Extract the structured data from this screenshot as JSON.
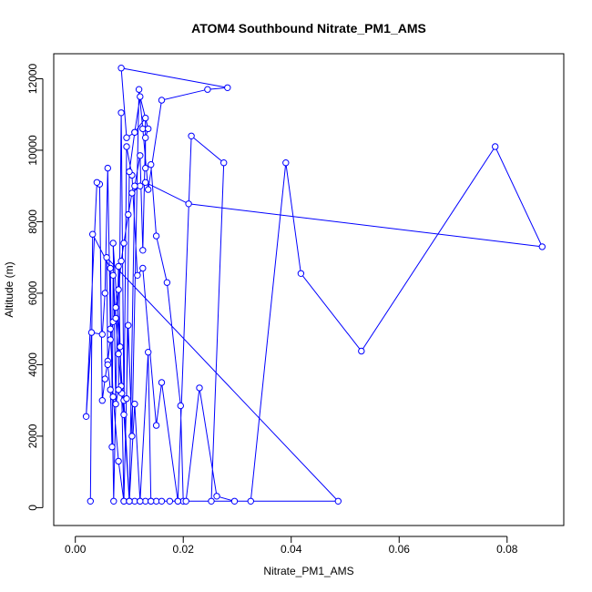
{
  "chart_data": {
    "type": "line",
    "title": "ATOM4 Southbound Nitrate_PM1_AMS",
    "xlabel": "Nitrate_PM1_AMS",
    "ylabel": "Altitude (m)",
    "xlim": [
      -0.004,
      0.0905
    ],
    "ylim": [
      -500,
      12700
    ],
    "x_ticks": [
      0.0,
      0.02,
      0.04,
      0.06,
      0.08
    ],
    "x_tick_labels": [
      "0.00",
      "0.02",
      "0.04",
      "0.06",
      "0.08"
    ],
    "y_ticks": [
      0,
      2000,
      4000,
      6000,
      8000,
      10000,
      12000
    ],
    "y_tick_labels": [
      "0",
      "2000",
      "4000",
      "6000",
      "8000",
      "10000",
      "12000"
    ],
    "grid": false,
    "marker": "open-circle",
    "color": "#0000ff",
    "series": [
      {
        "x": [
          0.0028,
          0.0032,
          0.0065,
          0.0071,
          0.008,
          0.0083,
          0.0086,
          0.009,
          0.0098,
          0.0105,
          0.0118,
          0.0125,
          0.0135,
          0.016,
          0.0245,
          0.0282,
          0.0085,
          0.0095,
          0.011,
          0.013,
          0.013,
          0.014,
          0.015,
          0.017,
          0.0195,
          0.02,
          0.0205,
          0.023,
          0.0262,
          0.0295,
          0.0325,
          0.039,
          0.0418,
          0.053,
          0.0778,
          0.0865,
          0.021,
          0.013,
          0.012,
          0.0105,
          0.0098,
          0.009,
          0.0085,
          0.008,
          0.0075,
          0.007,
          0.0065,
          0.006,
          0.0055,
          0.005,
          0.0045,
          0.004,
          0.002,
          0.003,
          0.005,
          0.0055,
          0.006,
          0.0065,
          0.007,
          0.008,
          0.009,
          0.01,
          0.011,
          0.012,
          0.013,
          0.014,
          0.015,
          0.016,
          0.0175,
          0.019,
          0.0215,
          0.0275,
          0.0252,
          0.019,
          0.016,
          0.015,
          0.0125,
          0.0115,
          0.0105,
          0.0095,
          0.009,
          0.0085,
          0.008,
          0.0075,
          0.007,
          0.0068,
          0.0065,
          0.006,
          0.0058,
          0.0487,
          0.014,
          0.0135,
          0.012,
          0.011,
          0.01,
          0.009,
          0.0085,
          0.008,
          0.0075,
          0.007,
          0.01,
          0.011,
          0.012,
          0.0125,
          0.013,
          0.0135,
          0.012,
          0.011,
          0.01,
          0.0095
        ],
        "y": [
          180,
          7650,
          6700,
          180,
          6750,
          4500,
          3200,
          180,
          5100,
          2000,
          11700,
          10600,
          8900,
          11400,
          11700,
          11750,
          12300,
          10350,
          10500,
          10900,
          9500,
          9600,
          7600,
          6300,
          2850,
          180,
          180,
          3350,
          320,
          180,
          180,
          9650,
          6550,
          4380,
          10100,
          7300,
          8500,
          9100,
          9000,
          8800,
          8200,
          7400,
          6900,
          6100,
          5600,
          5200,
          4700,
          4100,
          3600,
          3000,
          9050,
          9100,
          2550,
          4900,
          4850,
          6000,
          9500,
          5000,
          3100,
          1300,
          180,
          180,
          180,
          180,
          180,
          180,
          180,
          180,
          180,
          180,
          10400,
          9650,
          180,
          180,
          3500,
          2300,
          6700,
          6500,
          9300,
          10100,
          2600,
          3400,
          4300,
          5300,
          6500,
          1700,
          3300,
          4000,
          7000,
          180,
          180,
          4350,
          180,
          2900,
          180,
          3000,
          11050,
          3300,
          2900,
          7400,
          180,
          9000,
          9850,
          7200,
          10350,
          10600,
          11500,
          10500,
          9400,
          3050
        ]
      }
    ]
  }
}
